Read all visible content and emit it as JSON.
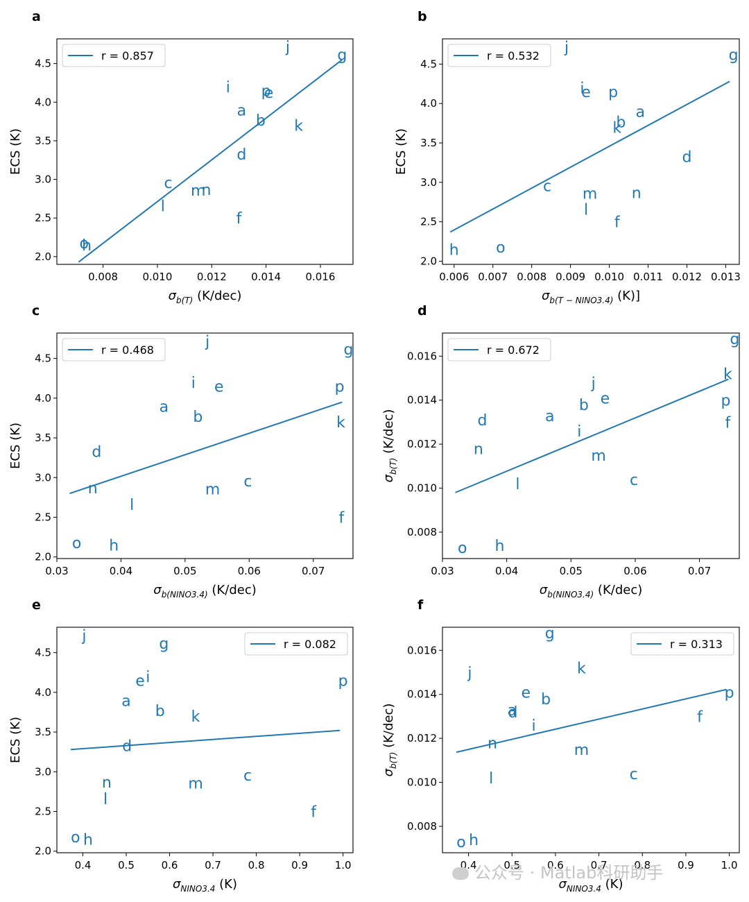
{
  "figure": {
    "watermark": "公众号 · Matlab科研助手",
    "watermark_icon": "wechat-icon",
    "line_color": "#1f77b4"
  },
  "chart_data": [
    {
      "panel": "a",
      "type": "scatter",
      "xlabel_var": "σ",
      "xlabel_sub": "b(T)",
      "xlabel_unit": " (K/dec)",
      "ylabel": "ECS (K)",
      "xlim": [
        0.0063,
        0.0172
      ],
      "ylim": [
        1.9,
        4.82
      ],
      "xticks": [
        0.008,
        0.01,
        0.012,
        0.014,
        0.016
      ],
      "xtick_fmt": 3,
      "yticks": [
        2.0,
        2.5,
        3.0,
        3.5,
        4.0,
        4.5
      ],
      "ytick_fmt": 1,
      "legend": "r = 0.857",
      "legend_loc": "upper left",
      "fit": {
        "x": [
          0.0071,
          0.0168
        ],
        "y": [
          1.93,
          4.55
        ]
      },
      "points": [
        {
          "label": "j",
          "x": 0.0148,
          "y": 4.72
        },
        {
          "label": "g",
          "x": 0.0168,
          "y": 4.62
        },
        {
          "label": "i",
          "x": 0.0126,
          "y": 4.2
        },
        {
          "label": "p",
          "x": 0.014,
          "y": 4.15
        },
        {
          "label": "e",
          "x": 0.0141,
          "y": 4.13
        },
        {
          "label": "a",
          "x": 0.0131,
          "y": 3.9
        },
        {
          "label": "b",
          "x": 0.0138,
          "y": 3.77
        },
        {
          "label": "k",
          "x": 0.0152,
          "y": 3.7
        },
        {
          "label": "d",
          "x": 0.0131,
          "y": 3.33
        },
        {
          "label": "c",
          "x": 0.0104,
          "y": 2.96
        },
        {
          "label": "m",
          "x": 0.0115,
          "y": 2.86
        },
        {
          "label": "n",
          "x": 0.0118,
          "y": 2.87
        },
        {
          "label": "l",
          "x": 0.0102,
          "y": 2.66
        },
        {
          "label": "f",
          "x": 0.013,
          "y": 2.5
        },
        {
          "label": "o",
          "x": 0.0073,
          "y": 2.18
        },
        {
          "label": "h",
          "x": 0.0074,
          "y": 2.15
        }
      ]
    },
    {
      "panel": "b",
      "type": "scatter",
      "xlabel_var": "σ",
      "xlabel_sub": "b(T − NINO3.4)",
      "xlabel_unit": " (K)]",
      "ylabel": "ECS (K)",
      "xlim": [
        0.0057,
        0.01335
      ],
      "ylim": [
        1.96,
        4.82
      ],
      "xticks": [
        0.006,
        0.007,
        0.008,
        0.009,
        0.01,
        0.011,
        0.012,
        0.013
      ],
      "xtick_fmt": 3,
      "yticks": [
        2.0,
        2.5,
        3.0,
        3.5,
        4.0,
        4.5
      ],
      "ytick_fmt": 1,
      "legend": "r = 0.532",
      "legend_loc": "upper left",
      "fit": {
        "x": [
          0.0059,
          0.0131
        ],
        "y": [
          2.37,
          4.28
        ]
      },
      "points": [
        {
          "label": "j",
          "x": 0.0089,
          "y": 4.72
        },
        {
          "label": "g",
          "x": 0.0132,
          "y": 4.62
        },
        {
          "label": "i",
          "x": 0.0093,
          "y": 4.2
        },
        {
          "label": "e",
          "x": 0.0094,
          "y": 4.15
        },
        {
          "label": "p",
          "x": 0.0101,
          "y": 4.15
        },
        {
          "label": "a",
          "x": 0.0108,
          "y": 3.9
        },
        {
          "label": "b",
          "x": 0.0103,
          "y": 3.77
        },
        {
          "label": "k",
          "x": 0.0102,
          "y": 3.7
        },
        {
          "label": "d",
          "x": 0.012,
          "y": 3.33
        },
        {
          "label": "c",
          "x": 0.0084,
          "y": 2.96
        },
        {
          "label": "m",
          "x": 0.0095,
          "y": 2.86
        },
        {
          "label": "n",
          "x": 0.0107,
          "y": 2.87
        },
        {
          "label": "l",
          "x": 0.0094,
          "y": 2.66
        },
        {
          "label": "f",
          "x": 0.0102,
          "y": 2.5
        },
        {
          "label": "o",
          "x": 0.0072,
          "y": 2.18
        },
        {
          "label": "h",
          "x": 0.006,
          "y": 2.15
        }
      ]
    },
    {
      "panel": "c",
      "type": "scatter",
      "xlabel_var": "σ",
      "xlabel_sub": "b(NINO3.4)",
      "xlabel_unit": " (K/dec)",
      "ylabel": "ECS (K)",
      "xlim": [
        0.03,
        0.0762
      ],
      "ylim": [
        1.98,
        4.82
      ],
      "xticks": [
        0.03,
        0.04,
        0.05,
        0.06,
        0.07
      ],
      "xtick_fmt": 2,
      "yticks": [
        2.0,
        2.5,
        3.0,
        3.5,
        4.0,
        4.5
      ],
      "ytick_fmt": 1,
      "legend": "r = 0.468",
      "legend_loc": "upper left",
      "fit": {
        "x": [
          0.032,
          0.0745
        ],
        "y": [
          2.8,
          3.95
        ]
      },
      "points": [
        {
          "label": "j",
          "x": 0.0535,
          "y": 4.72
        },
        {
          "label": "g",
          "x": 0.0755,
          "y": 4.62
        },
        {
          "label": "i",
          "x": 0.0513,
          "y": 4.2
        },
        {
          "label": "e",
          "x": 0.0553,
          "y": 4.15
        },
        {
          "label": "p",
          "x": 0.0741,
          "y": 4.15
        },
        {
          "label": "a",
          "x": 0.0467,
          "y": 3.9
        },
        {
          "label": "b",
          "x": 0.052,
          "y": 3.77
        },
        {
          "label": "k",
          "x": 0.0743,
          "y": 3.7
        },
        {
          "label": "d",
          "x": 0.0362,
          "y": 3.33
        },
        {
          "label": "c",
          "x": 0.0598,
          "y": 2.96
        },
        {
          "label": "m",
          "x": 0.0543,
          "y": 2.86
        },
        {
          "label": "n",
          "x": 0.0356,
          "y": 2.87
        },
        {
          "label": "l",
          "x": 0.0417,
          "y": 2.66
        },
        {
          "label": "f",
          "x": 0.0744,
          "y": 2.5
        },
        {
          "label": "o",
          "x": 0.0331,
          "y": 2.18
        },
        {
          "label": "h",
          "x": 0.0389,
          "y": 2.15
        }
      ]
    },
    {
      "panel": "d",
      "type": "scatter",
      "xlabel_var": "σ",
      "xlabel_sub": "b(NINO3.4)",
      "xlabel_unit": " (K/dec)",
      "ylabel_var": "σ",
      "ylabel_sub": "b(T)",
      "ylabel_unit": " (K/dec)",
      "xlim": [
        0.03,
        0.0762
      ],
      "ylim": [
        0.0068,
        0.01705
      ],
      "xticks": [
        0.03,
        0.04,
        0.05,
        0.06,
        0.07
      ],
      "xtick_fmt": 2,
      "yticks": [
        0.008,
        0.01,
        0.012,
        0.014,
        0.016
      ],
      "ytick_fmt": 3,
      "legend": "r = 0.672",
      "legend_loc": "upper left",
      "fit": {
        "x": [
          0.032,
          0.0745
        ],
        "y": [
          0.0098,
          0.01495
        ]
      },
      "points": [
        {
          "label": "g",
          "x": 0.0755,
          "y": 0.0168
        },
        {
          "label": "k",
          "x": 0.0744,
          "y": 0.0152
        },
        {
          "label": "j",
          "x": 0.0535,
          "y": 0.0148
        },
        {
          "label": "e",
          "x": 0.0553,
          "y": 0.0141
        },
        {
          "label": "p",
          "x": 0.0741,
          "y": 0.014
        },
        {
          "label": "b",
          "x": 0.052,
          "y": 0.0138
        },
        {
          "label": "a",
          "x": 0.0467,
          "y": 0.0133
        },
        {
          "label": "d",
          "x": 0.0362,
          "y": 0.0131
        },
        {
          "label": "f",
          "x": 0.0744,
          "y": 0.013
        },
        {
          "label": "i",
          "x": 0.0513,
          "y": 0.0126
        },
        {
          "label": "n",
          "x": 0.0356,
          "y": 0.0118
        },
        {
          "label": "m",
          "x": 0.0543,
          "y": 0.0115
        },
        {
          "label": "c",
          "x": 0.0598,
          "y": 0.0104
        },
        {
          "label": "l",
          "x": 0.0417,
          "y": 0.0102
        },
        {
          "label": "h",
          "x": 0.0389,
          "y": 0.0074
        },
        {
          "label": "o",
          "x": 0.0331,
          "y": 0.0073
        }
      ]
    },
    {
      "panel": "e",
      "type": "scatter",
      "xlabel_var": "σ",
      "xlabel_sub": "NINO3.4",
      "xlabel_unit": " (K)",
      "ylabel": "ECS (K)",
      "xlim": [
        0.34,
        1.023
      ],
      "ylim": [
        1.98,
        4.82
      ],
      "xticks": [
        0.4,
        0.5,
        0.6,
        0.7,
        0.8,
        0.9,
        1.0
      ],
      "xtick_fmt": 1,
      "yticks": [
        2.0,
        2.5,
        3.0,
        3.5,
        4.0,
        4.5
      ],
      "ytick_fmt": 1,
      "legend": "r = 0.082",
      "legend_loc": "upper right",
      "fit": {
        "x": [
          0.372,
          0.993
        ],
        "y": [
          3.28,
          3.52
        ]
      },
      "points": [
        {
          "label": "j",
          "x": 0.403,
          "y": 4.72
        },
        {
          "label": "g",
          "x": 0.587,
          "y": 4.62
        },
        {
          "label": "e",
          "x": 0.532,
          "y": 4.15
        },
        {
          "label": "i",
          "x": 0.55,
          "y": 4.2
        },
        {
          "label": "p",
          "x": 1.0,
          "y": 4.15
        },
        {
          "label": "a",
          "x": 0.5,
          "y": 3.9
        },
        {
          "label": "b",
          "x": 0.578,
          "y": 3.77
        },
        {
          "label": "k",
          "x": 0.66,
          "y": 3.7
        },
        {
          "label": "d",
          "x": 0.502,
          "y": 3.33
        },
        {
          "label": "c",
          "x": 0.78,
          "y": 2.96
        },
        {
          "label": "m",
          "x": 0.66,
          "y": 2.86
        },
        {
          "label": "n",
          "x": 0.455,
          "y": 2.87
        },
        {
          "label": "l",
          "x": 0.452,
          "y": 2.66
        },
        {
          "label": "f",
          "x": 0.932,
          "y": 2.5
        },
        {
          "label": "o",
          "x": 0.383,
          "y": 2.18
        },
        {
          "label": "h",
          "x": 0.412,
          "y": 2.15
        }
      ]
    },
    {
      "panel": "f",
      "type": "scatter",
      "xlabel_var": "σ",
      "xlabel_sub": "NINO3.4",
      "xlabel_unit": " (K)",
      "ylabel_var": "σ",
      "ylabel_sub": "b(T)",
      "ylabel_unit": " (K/dec)",
      "xlim": [
        0.34,
        1.023
      ],
      "ylim": [
        0.0068,
        0.01705
      ],
      "xticks": [
        0.4,
        0.5,
        0.6,
        0.7,
        0.8,
        0.9,
        1.0
      ],
      "xtick_fmt": 1,
      "yticks": [
        0.008,
        0.01,
        0.012,
        0.014,
        0.016
      ],
      "ytick_fmt": 3,
      "legend": "r = 0.313",
      "legend_loc": "upper right",
      "fit": {
        "x": [
          0.372,
          0.993
        ],
        "y": [
          0.01137,
          0.01422
        ]
      },
      "points": [
        {
          "label": "g",
          "x": 0.587,
          "y": 0.0168
        },
        {
          "label": "k",
          "x": 0.66,
          "y": 0.0152
        },
        {
          "label": "j",
          "x": 0.403,
          "y": 0.015
        },
        {
          "label": "e",
          "x": 0.532,
          "y": 0.0141
        },
        {
          "label": "p",
          "x": 1.0,
          "y": 0.0141
        },
        {
          "label": "b",
          "x": 0.578,
          "y": 0.0138
        },
        {
          "label": "a",
          "x": 0.5,
          "y": 0.0133
        },
        {
          "label": "d",
          "x": 0.502,
          "y": 0.0132
        },
        {
          "label": "f",
          "x": 0.932,
          "y": 0.013
        },
        {
          "label": "i",
          "x": 0.55,
          "y": 0.0126
        },
        {
          "label": "n",
          "x": 0.455,
          "y": 0.0118
        },
        {
          "label": "m",
          "x": 0.66,
          "y": 0.0115
        },
        {
          "label": "c",
          "x": 0.78,
          "y": 0.0104
        },
        {
          "label": "l",
          "x": 0.452,
          "y": 0.0102
        },
        {
          "label": "h",
          "x": 0.412,
          "y": 0.0074
        },
        {
          "label": "o",
          "x": 0.383,
          "y": 0.0073
        }
      ]
    }
  ]
}
